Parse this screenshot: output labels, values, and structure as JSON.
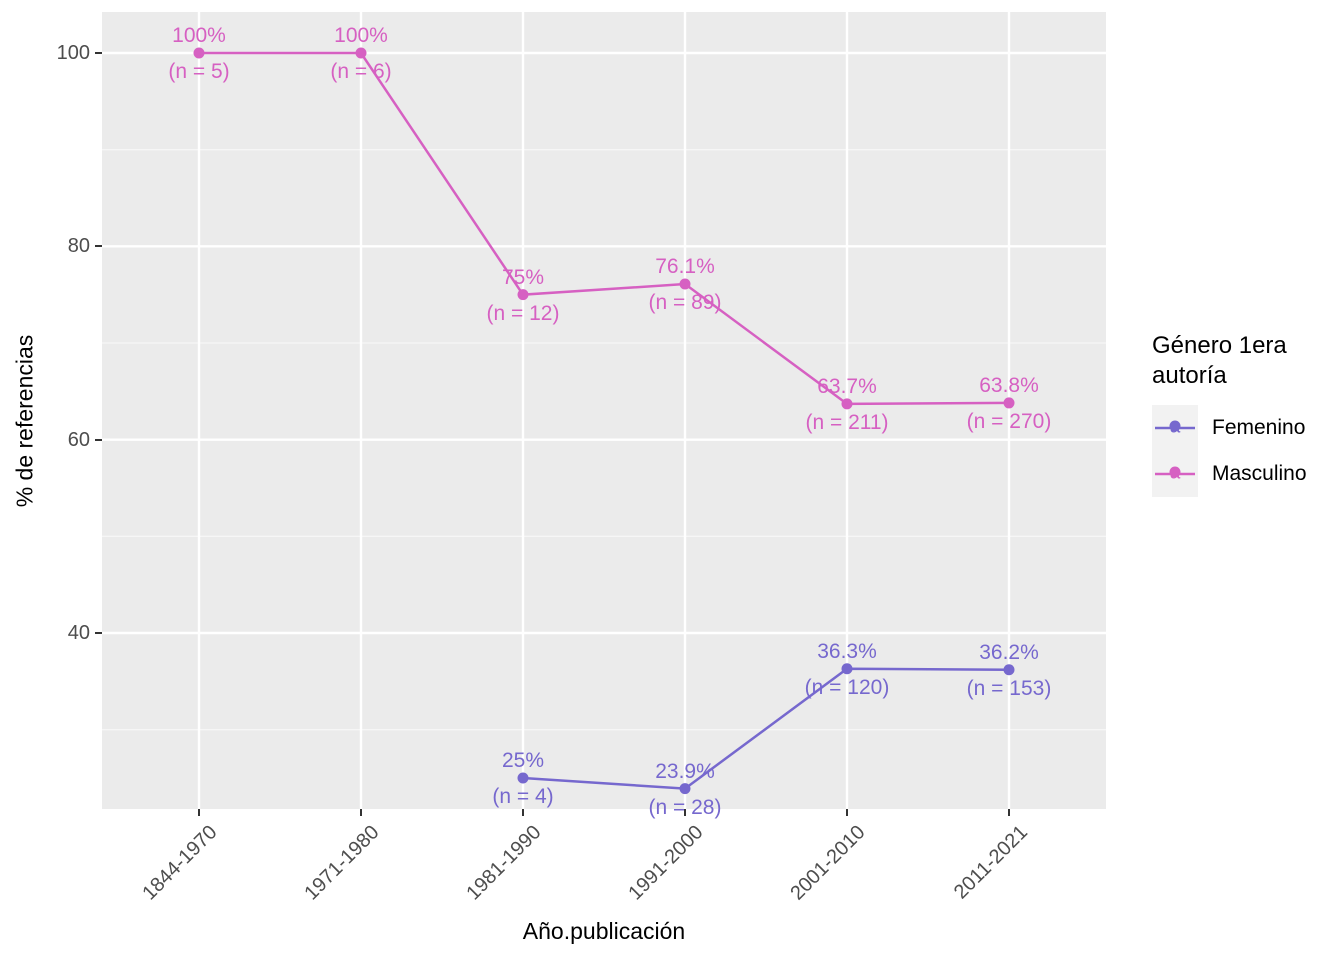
{
  "chart_data": {
    "type": "line",
    "xlabel": "Año.publicación",
    "ylabel": "% de referencias",
    "categories": [
      "1844-1970",
      "1971-1980",
      "1981-1990",
      "1991-2000",
      "2001-2010",
      "2011-2021"
    ],
    "y_ticks": [
      {
        "value": 100,
        "label": "100"
      },
      {
        "value": 80,
        "label": "80"
      },
      {
        "value": 60,
        "label": "60"
      },
      {
        "value": 40,
        "label": "40"
      }
    ],
    "y_minor": [
      90,
      70,
      50,
      30
    ],
    "ylim": [
      21.9,
      104.2
    ],
    "grid": true,
    "panel_bg": "#EBEBEB",
    "gridline_color": "#FFFFFF",
    "tick_color": "#333333",
    "tick_label_color": "#4D4D4D",
    "legend": {
      "position": "right",
      "title": "Género 1era autoría",
      "key_glyph": "a",
      "entries": [
        {
          "label": "Femenino",
          "color": "#7668CE"
        },
        {
          "label": "Masculino",
          "color": "#D660C2"
        }
      ]
    },
    "series": [
      {
        "name": "Femenino",
        "color": "#7668CE",
        "points": [
          {
            "category": "1981-1990",
            "cat_index": 2,
            "value": 25,
            "value_label": "25%",
            "n": 4,
            "n_label": "(n = 4)"
          },
          {
            "category": "1991-2000",
            "cat_index": 3,
            "value": 23.9,
            "value_label": "23.9%",
            "n": 28,
            "n_label": "(n = 28)"
          },
          {
            "category": "2001-2010",
            "cat_index": 4,
            "value": 36.3,
            "value_label": "36.3%",
            "n": 120,
            "n_label": "(n = 120)"
          },
          {
            "category": "2011-2021",
            "cat_index": 5,
            "value": 36.2,
            "value_label": "36.2%",
            "n": 153,
            "n_label": "(n = 153)"
          }
        ]
      },
      {
        "name": "Masculino",
        "color": "#D660C2",
        "points": [
          {
            "category": "1844-1970",
            "cat_index": 0,
            "value": 100,
            "value_label": "100%",
            "n": 5,
            "n_label": "(n = 5)"
          },
          {
            "category": "1971-1980",
            "cat_index": 1,
            "value": 100,
            "value_label": "100%",
            "n": 6,
            "n_label": "(n = 6)"
          },
          {
            "category": "1981-1990",
            "cat_index": 2,
            "value": 75,
            "value_label": "75%",
            "n": 12,
            "n_label": "(n = 12)"
          },
          {
            "category": "1991-2000",
            "cat_index": 3,
            "value": 76.1,
            "value_label": "76.1%",
            "n": 89,
            "n_label": "(n = 89)"
          },
          {
            "category": "2001-2010",
            "cat_index": 4,
            "value": 63.7,
            "value_label": "63.7%",
            "n": 211,
            "n_label": "(n = 211)"
          },
          {
            "category": "2011-2021",
            "cat_index": 5,
            "value": 63.8,
            "value_label": "63.8%",
            "n": 270,
            "n_label": "(n = 270)"
          }
        ]
      }
    ]
  }
}
